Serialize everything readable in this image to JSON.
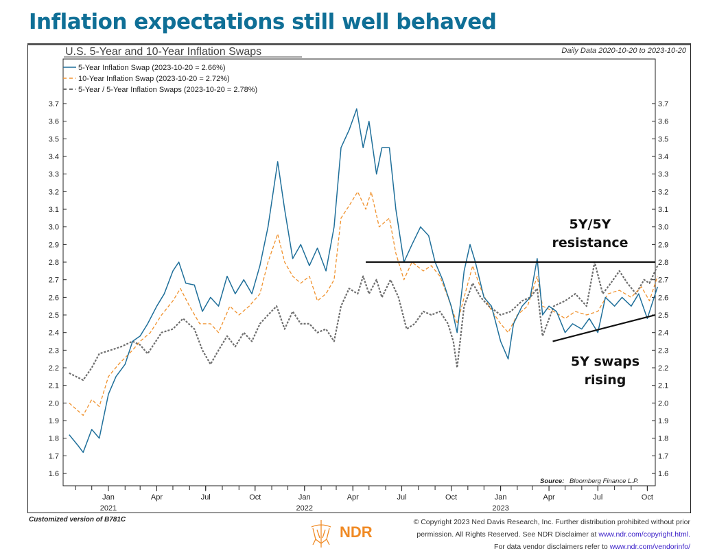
{
  "page": {
    "title": "Inflation expectations still well behaved",
    "footer_left": "Customized version of B781C",
    "copyright_line1": "© Copyright 2023 Ned Davis Research, Inc. Further distribution prohibited without prior",
    "copyright_line2": "permission. All Rights Reserved. See NDR Disclaimer at",
    "copyright_link1": "www.ndr.com/copyright.html.",
    "copyright_line3": "For data vendor disclaimers refer to",
    "copyright_link2": "www.ndr.com/vendorinfo/",
    "logo_text": "NDR",
    "colors": {
      "title": "#0f6f96",
      "logo": "#f08a24",
      "link": "#3a1fc8"
    }
  },
  "chart_data": {
    "type": "line",
    "title": "U.S. 5-Year and 10-Year Inflation Swaps",
    "subtitle": "Daily Data 2020-10-20 to 2023-10-20",
    "source_label": "Source:",
    "source": "Bloomberg Finance L.P.",
    "xlabel": "",
    "ylabel": "",
    "ylim": [
      1.6,
      3.7
    ],
    "xlim": [
      "2020-10-20",
      "2023-10-20"
    ],
    "yticks": [
      "1.6",
      "1.7",
      "1.8",
      "1.9",
      "2.0",
      "2.1",
      "2.2",
      "2.3",
      "2.4",
      "2.5",
      "2.6",
      "2.7",
      "2.8",
      "2.9",
      "3.0",
      "3.1",
      "3.2",
      "3.3",
      "3.4",
      "3.5",
      "3.6",
      "3.7"
    ],
    "xticks": [
      {
        "date": "2021-01-01",
        "label": "Jan",
        "year": "2021"
      },
      {
        "date": "2021-04-01",
        "label": "Apr",
        "year": ""
      },
      {
        "date": "2021-07-01",
        "label": "Jul",
        "year": ""
      },
      {
        "date": "2021-10-01",
        "label": "Oct",
        "year": ""
      },
      {
        "date": "2022-01-01",
        "label": "Jan",
        "year": "2022"
      },
      {
        "date": "2022-04-01",
        "label": "Apr",
        "year": ""
      },
      {
        "date": "2022-07-01",
        "label": "Jul",
        "year": ""
      },
      {
        "date": "2022-10-01",
        "label": "Oct",
        "year": ""
      },
      {
        "date": "2023-01-01",
        "label": "Jan",
        "year": "2023"
      },
      {
        "date": "2023-04-01",
        "label": "Apr",
        "year": ""
      },
      {
        "date": "2023-07-01",
        "label": "Jul",
        "year": ""
      },
      {
        "date": "2023-10-01",
        "label": "Oct",
        "year": ""
      }
    ],
    "grid": false,
    "legend_position": "top-left",
    "series": [
      {
        "name": "5-Year Inflation Swap (2023-10-20 = 2.66%)",
        "color": "#1f6f9a",
        "style": "solid",
        "x": [
          "2020-10-20",
          "2020-11-05",
          "2020-11-15",
          "2020-12-01",
          "2020-12-15",
          "2021-01-01",
          "2021-01-15",
          "2021-02-01",
          "2021-02-15",
          "2021-03-01",
          "2021-03-15",
          "2021-04-01",
          "2021-04-15",
          "2021-05-01",
          "2021-05-12",
          "2021-05-25",
          "2021-06-10",
          "2021-06-25",
          "2021-07-10",
          "2021-07-25",
          "2021-08-10",
          "2021-08-25",
          "2021-09-10",
          "2021-09-25",
          "2021-10-10",
          "2021-10-25",
          "2021-11-12",
          "2021-11-25",
          "2021-12-10",
          "2021-12-25",
          "2022-01-10",
          "2022-01-25",
          "2022-02-10",
          "2022-02-25",
          "2022-03-10",
          "2022-03-25",
          "2022-04-08",
          "2022-04-20",
          "2022-05-01",
          "2022-05-15",
          "2022-05-25",
          "2022-06-08",
          "2022-06-20",
          "2022-07-05",
          "2022-07-20",
          "2022-08-05",
          "2022-08-20",
          "2022-09-01",
          "2022-09-15",
          "2022-10-01",
          "2022-10-12",
          "2022-10-25",
          "2022-11-05",
          "2022-11-15",
          "2022-12-01",
          "2022-12-15",
          "2023-01-01",
          "2023-01-15",
          "2023-01-25",
          "2023-02-10",
          "2023-02-25",
          "2023-03-10",
          "2023-03-20",
          "2023-04-01",
          "2023-04-15",
          "2023-05-01",
          "2023-05-15",
          "2023-06-01",
          "2023-06-15",
          "2023-07-01",
          "2023-07-15",
          "2023-08-01",
          "2023-08-15",
          "2023-09-01",
          "2023-09-15",
          "2023-10-01",
          "2023-10-20"
        ],
        "values": [
          1.82,
          1.76,
          1.72,
          1.85,
          1.8,
          2.05,
          2.15,
          2.22,
          2.35,
          2.38,
          2.45,
          2.55,
          2.62,
          2.75,
          2.8,
          2.68,
          2.67,
          2.52,
          2.6,
          2.55,
          2.72,
          2.62,
          2.7,
          2.62,
          2.78,
          3.0,
          3.37,
          3.1,
          2.82,
          2.9,
          2.78,
          2.88,
          2.75,
          3.0,
          3.45,
          3.55,
          3.67,
          3.45,
          3.6,
          3.3,
          3.45,
          3.45,
          3.1,
          2.8,
          2.9,
          3.0,
          2.95,
          2.8,
          2.7,
          2.55,
          2.4,
          2.75,
          2.9,
          2.8,
          2.6,
          2.55,
          2.35,
          2.25,
          2.45,
          2.55,
          2.6,
          2.82,
          2.5,
          2.55,
          2.52,
          2.4,
          2.45,
          2.42,
          2.48,
          2.4,
          2.6,
          2.55,
          2.6,
          2.55,
          2.62,
          2.48,
          2.66
        ]
      },
      {
        "name": "10-Year Inflation Swap (2023-10-20 = 2.72%)",
        "color": "#f0922e",
        "style": "dashed",
        "x": [
          "2020-10-20",
          "2020-11-15",
          "2020-12-01",
          "2020-12-15",
          "2021-01-01",
          "2021-01-20",
          "2021-02-15",
          "2021-03-01",
          "2021-03-20",
          "2021-04-10",
          "2021-05-01",
          "2021-05-15",
          "2021-06-01",
          "2021-06-20",
          "2021-07-10",
          "2021-07-25",
          "2021-08-15",
          "2021-09-01",
          "2021-09-20",
          "2021-10-10",
          "2021-10-25",
          "2021-11-12",
          "2021-11-25",
          "2021-12-10",
          "2021-12-25",
          "2022-01-10",
          "2022-01-25",
          "2022-02-10",
          "2022-02-25",
          "2022-03-10",
          "2022-03-25",
          "2022-04-10",
          "2022-04-25",
          "2022-05-05",
          "2022-05-20",
          "2022-06-08",
          "2022-06-20",
          "2022-07-05",
          "2022-07-20",
          "2022-08-10",
          "2022-08-25",
          "2022-09-10",
          "2022-09-25",
          "2022-10-12",
          "2022-10-25",
          "2022-11-10",
          "2022-11-25",
          "2022-12-10",
          "2023-01-01",
          "2023-01-15",
          "2023-02-01",
          "2023-02-20",
          "2023-03-10",
          "2023-03-20",
          "2023-04-10",
          "2023-05-01",
          "2023-05-20",
          "2023-06-10",
          "2023-07-01",
          "2023-07-20",
          "2023-08-10",
          "2023-09-01",
          "2023-09-20",
          "2023-10-05",
          "2023-10-20"
        ],
        "values": [
          2.0,
          1.93,
          2.02,
          1.98,
          2.15,
          2.22,
          2.3,
          2.35,
          2.4,
          2.5,
          2.58,
          2.65,
          2.55,
          2.45,
          2.45,
          2.4,
          2.55,
          2.5,
          2.55,
          2.62,
          2.8,
          2.96,
          2.8,
          2.72,
          2.68,
          2.72,
          2.58,
          2.62,
          2.7,
          3.05,
          3.12,
          3.2,
          3.1,
          3.2,
          3.0,
          3.05,
          2.85,
          2.7,
          2.8,
          2.75,
          2.78,
          2.72,
          2.6,
          2.45,
          2.6,
          2.78,
          2.65,
          2.55,
          2.45,
          2.4,
          2.5,
          2.55,
          2.72,
          2.55,
          2.52,
          2.48,
          2.52,
          2.5,
          2.52,
          2.62,
          2.64,
          2.6,
          2.66,
          2.58,
          2.72
        ]
      },
      {
        "name": "5-Year / 5-Year Inflation Swaps (2023-10-20 = 2.78%)",
        "color": "#6e6e6e",
        "style": "dotted",
        "x": [
          "2020-10-20",
          "2020-11-15",
          "2020-12-01",
          "2020-12-15",
          "2021-01-05",
          "2021-01-25",
          "2021-02-15",
          "2021-03-01",
          "2021-03-15",
          "2021-04-10",
          "2021-05-01",
          "2021-05-20",
          "2021-06-10",
          "2021-06-25",
          "2021-07-10",
          "2021-07-25",
          "2021-08-10",
          "2021-08-25",
          "2021-09-10",
          "2021-09-25",
          "2021-10-10",
          "2021-10-25",
          "2021-11-10",
          "2021-11-25",
          "2021-12-10",
          "2021-12-25",
          "2022-01-10",
          "2022-01-25",
          "2022-02-10",
          "2022-02-25",
          "2022-03-10",
          "2022-03-25",
          "2022-04-10",
          "2022-04-20",
          "2022-05-01",
          "2022-05-15",
          "2022-05-25",
          "2022-06-10",
          "2022-06-25",
          "2022-07-10",
          "2022-07-25",
          "2022-08-10",
          "2022-08-25",
          "2022-09-10",
          "2022-09-25",
          "2022-10-05",
          "2022-10-12",
          "2022-10-25",
          "2022-11-10",
          "2022-11-25",
          "2022-12-10",
          "2023-01-01",
          "2023-01-20",
          "2023-02-10",
          "2023-02-25",
          "2023-03-10",
          "2023-03-20",
          "2023-04-10",
          "2023-05-01",
          "2023-05-20",
          "2023-06-10",
          "2023-06-25",
          "2023-07-10",
          "2023-07-25",
          "2023-08-10",
          "2023-08-25",
          "2023-09-10",
          "2023-09-25",
          "2023-10-05",
          "2023-10-20"
        ],
        "values": [
          2.17,
          2.13,
          2.2,
          2.28,
          2.3,
          2.32,
          2.35,
          2.33,
          2.28,
          2.4,
          2.42,
          2.48,
          2.42,
          2.3,
          2.22,
          2.3,
          2.38,
          2.32,
          2.4,
          2.35,
          2.45,
          2.5,
          2.55,
          2.42,
          2.52,
          2.45,
          2.45,
          2.4,
          2.42,
          2.35,
          2.55,
          2.65,
          2.62,
          2.72,
          2.62,
          2.7,
          2.6,
          2.7,
          2.6,
          2.42,
          2.45,
          2.52,
          2.5,
          2.52,
          2.45,
          2.35,
          2.2,
          2.55,
          2.68,
          2.6,
          2.55,
          2.5,
          2.52,
          2.58,
          2.6,
          2.65,
          2.38,
          2.55,
          2.58,
          2.62,
          2.55,
          2.8,
          2.62,
          2.68,
          2.75,
          2.68,
          2.62,
          2.7,
          2.68,
          2.78
        ]
      }
    ],
    "annotations": [
      {
        "text_line1": "5Y/5Y",
        "text_line2": "resistance",
        "type": "hline",
        "y": 2.8,
        "x_start": "2022-04-25",
        "x_end": "2023-10-20"
      },
      {
        "text_line1": "5Y swaps",
        "text_line2": "rising",
        "type": "trendline",
        "x_start": "2023-04-08",
        "y_start": 2.35,
        "x_end": "2023-10-20",
        "y_end": 2.5
      }
    ]
  }
}
